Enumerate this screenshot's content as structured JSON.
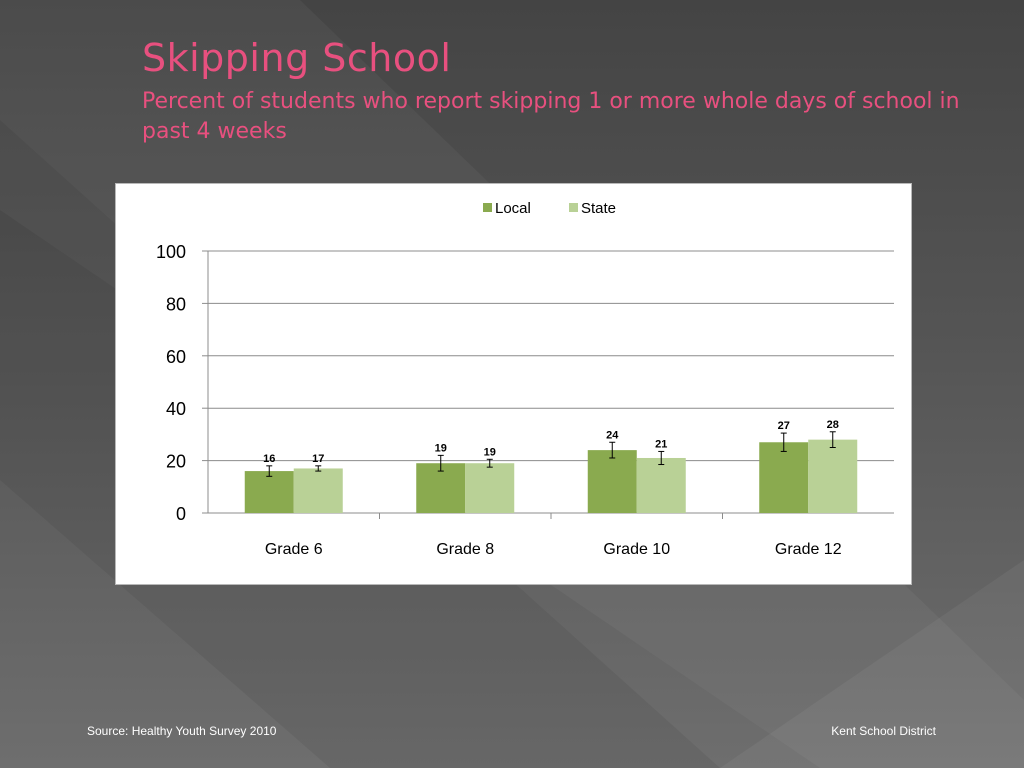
{
  "slide": {
    "title": "Skipping School",
    "subtitle": "Percent of students who report skipping 1 or more whole days of school in past 4 weeks",
    "source": "Source: Healthy Youth Survey 2010",
    "district": "Kent School District"
  },
  "colors": {
    "accent": "#e8507f",
    "local": "#8aaa4f",
    "state": "#b9d196"
  },
  "chart_data": {
    "type": "bar",
    "title": "",
    "xlabel": "",
    "ylabel": "",
    "categories": [
      "Grade 6",
      "Grade 8",
      "Grade 10",
      "Grade 12"
    ],
    "series": [
      {
        "name": "Local",
        "values": [
          16,
          19,
          24,
          27
        ],
        "error": [
          2,
          3,
          3,
          3.5
        ]
      },
      {
        "name": "State",
        "values": [
          17,
          19,
          21,
          28
        ],
        "error": [
          1,
          1.5,
          2.5,
          3
        ]
      }
    ],
    "data_labels": true,
    "ylim": [
      0,
      100
    ],
    "yticks": [
      0,
      20,
      40,
      60,
      80,
      100
    ],
    "grid": true,
    "legend": "top-center"
  }
}
